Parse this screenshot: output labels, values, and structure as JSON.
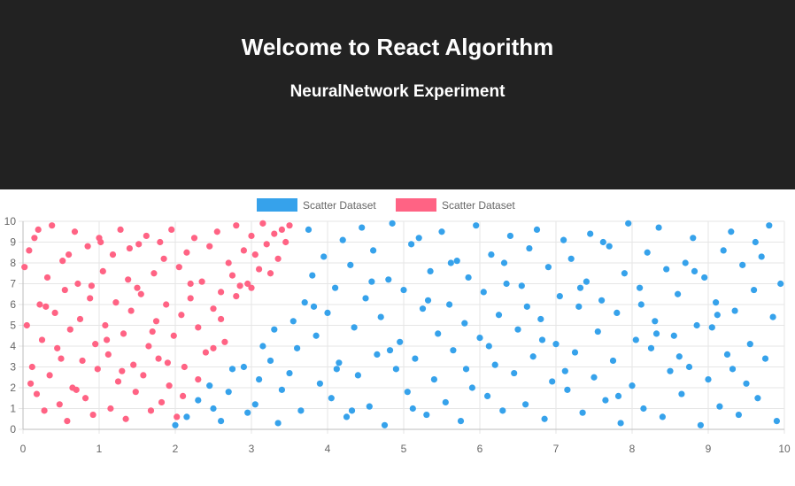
{
  "header": {
    "title": "Welcome to React Algorithm",
    "subtitle": "NeuralNetwork Experiment"
  },
  "colors": {
    "header_bg": "#222222",
    "series_blue": "#36a2eb",
    "series_red": "#ff6384",
    "grid": "#e6e6e6",
    "tick_text": "#666666"
  },
  "chart_data": {
    "type": "scatter",
    "xlim": [
      0,
      10
    ],
    "ylim": [
      0,
      10
    ],
    "x_ticks": [
      "0",
      "1",
      "2",
      "3",
      "4",
      "5",
      "6",
      "7",
      "8",
      "9",
      "10"
    ],
    "y_ticks": [
      "0",
      "1",
      "2",
      "3",
      "4",
      "5",
      "6",
      "7",
      "8",
      "9",
      "10"
    ],
    "grid": true,
    "legend_position": "top",
    "series": [
      {
        "name": "Scatter Dataset",
        "color": "#36a2eb",
        "points": [
          [
            2.0,
            0.2
          ],
          [
            2.15,
            0.6
          ],
          [
            2.3,
            1.4
          ],
          [
            2.45,
            2.1
          ],
          [
            2.5,
            1.0
          ],
          [
            2.6,
            0.4
          ],
          [
            2.7,
            1.8
          ],
          [
            2.75,
            2.9
          ],
          [
            2.9,
            3.0
          ],
          [
            2.95,
            0.8
          ],
          [
            3.05,
            1.2
          ],
          [
            3.1,
            2.4
          ],
          [
            3.15,
            4.0
          ],
          [
            3.25,
            3.3
          ],
          [
            3.3,
            4.8
          ],
          [
            3.35,
            0.3
          ],
          [
            3.4,
            1.9
          ],
          [
            3.5,
            2.7
          ],
          [
            3.55,
            5.2
          ],
          [
            3.6,
            3.9
          ],
          [
            3.65,
            0.9
          ],
          [
            3.7,
            6.1
          ],
          [
            3.75,
            9.6
          ],
          [
            3.8,
            7.4
          ],
          [
            3.85,
            4.5
          ],
          [
            3.9,
            2.2
          ],
          [
            3.95,
            8.3
          ],
          [
            4.0,
            5.6
          ],
          [
            4.05,
            1.5
          ],
          [
            4.1,
            6.8
          ],
          [
            4.15,
            3.2
          ],
          [
            4.2,
            9.1
          ],
          [
            4.25,
            0.6
          ],
          [
            4.3,
            7.9
          ],
          [
            4.35,
            4.9
          ],
          [
            4.4,
            2.6
          ],
          [
            4.45,
            9.7
          ],
          [
            4.5,
            6.3
          ],
          [
            4.55,
            1.1
          ],
          [
            4.6,
            8.6
          ],
          [
            4.65,
            3.6
          ],
          [
            4.7,
            5.4
          ],
          [
            4.75,
            0.2
          ],
          [
            4.8,
            7.2
          ],
          [
            4.85,
            9.9
          ],
          [
            4.9,
            2.9
          ],
          [
            4.95,
            4.2
          ],
          [
            5.0,
            6.7
          ],
          [
            5.05,
            1.8
          ],
          [
            5.1,
            8.9
          ],
          [
            5.15,
            3.4
          ],
          [
            5.2,
            9.2
          ],
          [
            5.25,
            5.8
          ],
          [
            5.3,
            0.7
          ],
          [
            5.35,
            7.6
          ],
          [
            5.4,
            2.4
          ],
          [
            5.45,
            4.6
          ],
          [
            5.5,
            9.5
          ],
          [
            5.55,
            1.3
          ],
          [
            5.6,
            6.0
          ],
          [
            5.65,
            3.8
          ],
          [
            5.7,
            8.1
          ],
          [
            5.75,
            0.4
          ],
          [
            5.8,
            5.1
          ],
          [
            5.85,
            7.3
          ],
          [
            5.9,
            2.0
          ],
          [
            5.95,
            9.8
          ],
          [
            6.0,
            4.4
          ],
          [
            6.05,
            6.6
          ],
          [
            6.1,
            1.6
          ],
          [
            6.15,
            8.4
          ],
          [
            6.2,
            3.1
          ],
          [
            6.25,
            5.5
          ],
          [
            6.3,
            0.9
          ],
          [
            6.35,
            7.0
          ],
          [
            6.4,
            9.3
          ],
          [
            6.45,
            2.7
          ],
          [
            6.5,
            4.8
          ],
          [
            6.55,
            6.9
          ],
          [
            6.6,
            1.2
          ],
          [
            6.65,
            8.7
          ],
          [
            6.7,
            3.5
          ],
          [
            6.75,
            9.6
          ],
          [
            6.8,
            5.3
          ],
          [
            6.85,
            0.5
          ],
          [
            6.9,
            7.8
          ],
          [
            6.95,
            2.3
          ],
          [
            7.0,
            4.1
          ],
          [
            7.05,
            6.4
          ],
          [
            7.1,
            9.1
          ],
          [
            7.15,
            1.9
          ],
          [
            7.2,
            8.2
          ],
          [
            7.25,
            3.7
          ],
          [
            7.3,
            5.9
          ],
          [
            7.35,
            0.8
          ],
          [
            7.4,
            7.1
          ],
          [
            7.45,
            9.4
          ],
          [
            7.5,
            2.5
          ],
          [
            7.55,
            4.7
          ],
          [
            7.6,
            6.2
          ],
          [
            7.65,
            1.4
          ],
          [
            7.7,
            8.8
          ],
          [
            7.75,
            3.3
          ],
          [
            7.8,
            5.6
          ],
          [
            7.85,
            0.3
          ],
          [
            7.9,
            7.5
          ],
          [
            7.95,
            9.9
          ],
          [
            8.0,
            2.1
          ],
          [
            8.05,
            4.3
          ],
          [
            8.1,
            6.8
          ],
          [
            8.15,
            1.0
          ],
          [
            8.2,
            8.5
          ],
          [
            8.25,
            3.9
          ],
          [
            8.3,
            5.2
          ],
          [
            8.35,
            9.7
          ],
          [
            8.4,
            0.6
          ],
          [
            8.45,
            7.7
          ],
          [
            8.5,
            2.8
          ],
          [
            8.55,
            4.5
          ],
          [
            8.6,
            6.5
          ],
          [
            8.65,
            1.7
          ],
          [
            8.7,
            8.0
          ],
          [
            8.75,
            3.0
          ],
          [
            8.8,
            9.2
          ],
          [
            8.85,
            5.0
          ],
          [
            8.9,
            0.2
          ],
          [
            8.95,
            7.3
          ],
          [
            9.0,
            2.4
          ],
          [
            9.05,
            4.9
          ],
          [
            9.1,
            6.1
          ],
          [
            9.15,
            1.1
          ],
          [
            9.2,
            8.6
          ],
          [
            9.25,
            3.6
          ],
          [
            9.3,
            9.5
          ],
          [
            9.35,
            5.7
          ],
          [
            9.4,
            0.7
          ],
          [
            9.45,
            7.9
          ],
          [
            9.5,
            2.2
          ],
          [
            9.55,
            4.1
          ],
          [
            9.6,
            6.7
          ],
          [
            9.65,
            1.5
          ],
          [
            9.7,
            8.3
          ],
          [
            9.75,
            3.4
          ],
          [
            9.8,
            9.8
          ],
          [
            9.85,
            5.4
          ],
          [
            9.9,
            0.4
          ],
          [
            9.95,
            7.0
          ],
          [
            4.12,
            2.9
          ],
          [
            4.58,
            7.1
          ],
          [
            5.12,
            1.0
          ],
          [
            5.62,
            8.0
          ],
          [
            6.12,
            4.0
          ],
          [
            6.62,
            5.9
          ],
          [
            7.12,
            2.8
          ],
          [
            7.62,
            9.0
          ],
          [
            8.12,
            6.0
          ],
          [
            8.62,
            3.5
          ],
          [
            9.12,
            5.5
          ],
          [
            9.62,
            9.0
          ],
          [
            3.82,
            5.9
          ],
          [
            4.32,
            0.9
          ],
          [
            4.82,
            3.8
          ],
          [
            5.32,
            6.2
          ],
          [
            5.82,
            2.9
          ],
          [
            6.32,
            8.0
          ],
          [
            6.82,
            4.3
          ],
          [
            7.32,
            6.8
          ],
          [
            7.82,
            1.6
          ],
          [
            8.32,
            4.6
          ],
          [
            8.82,
            7.6
          ],
          [
            9.32,
            2.9
          ]
        ]
      },
      {
        "name": "Scatter Dataset",
        "color": "#ff6384",
        "points": [
          [
            0.02,
            7.8
          ],
          [
            0.05,
            5.0
          ],
          [
            0.08,
            8.6
          ],
          [
            0.12,
            3.0
          ],
          [
            0.15,
            9.2
          ],
          [
            0.18,
            1.7
          ],
          [
            0.22,
            6.0
          ],
          [
            0.25,
            4.3
          ],
          [
            0.28,
            0.9
          ],
          [
            0.32,
            7.3
          ],
          [
            0.35,
            2.6
          ],
          [
            0.38,
            9.8
          ],
          [
            0.42,
            5.6
          ],
          [
            0.45,
            3.9
          ],
          [
            0.48,
            1.2
          ],
          [
            0.52,
            8.1
          ],
          [
            0.55,
            6.7
          ],
          [
            0.58,
            0.4
          ],
          [
            0.62,
            4.8
          ],
          [
            0.65,
            2.0
          ],
          [
            0.68,
            9.5
          ],
          [
            0.72,
            7.0
          ],
          [
            0.75,
            5.3
          ],
          [
            0.78,
            3.3
          ],
          [
            0.82,
            1.5
          ],
          [
            0.85,
            8.8
          ],
          [
            0.88,
            6.3
          ],
          [
            0.92,
            0.7
          ],
          [
            0.95,
            4.1
          ],
          [
            0.98,
            2.9
          ],
          [
            1.02,
            9.0
          ],
          [
            1.05,
            7.6
          ],
          [
            1.08,
            5.0
          ],
          [
            1.12,
            3.6
          ],
          [
            1.15,
            1.0
          ],
          [
            1.18,
            8.4
          ],
          [
            1.22,
            6.1
          ],
          [
            1.25,
            2.3
          ],
          [
            1.28,
            9.6
          ],
          [
            1.32,
            4.6
          ],
          [
            1.35,
            0.5
          ],
          [
            1.38,
            7.2
          ],
          [
            1.42,
            5.7
          ],
          [
            1.45,
            3.1
          ],
          [
            1.48,
            1.8
          ],
          [
            1.52,
            8.9
          ],
          [
            1.55,
            6.5
          ],
          [
            1.58,
            2.6
          ],
          [
            1.62,
            9.3
          ],
          [
            1.65,
            4.0
          ],
          [
            1.68,
            0.9
          ],
          [
            1.72,
            7.5
          ],
          [
            1.75,
            5.2
          ],
          [
            1.78,
            3.4
          ],
          [
            1.82,
            1.3
          ],
          [
            1.85,
            8.2
          ],
          [
            1.88,
            6.0
          ],
          [
            1.92,
            2.1
          ],
          [
            1.95,
            9.6
          ],
          [
            1.98,
            4.5
          ],
          [
            2.02,
            0.6
          ],
          [
            2.05,
            7.8
          ],
          [
            2.08,
            5.5
          ],
          [
            2.12,
            3.0
          ],
          [
            2.15,
            8.5
          ],
          [
            2.2,
            6.3
          ],
          [
            2.25,
            9.2
          ],
          [
            2.3,
            4.9
          ],
          [
            2.35,
            7.1
          ],
          [
            2.4,
            3.7
          ],
          [
            2.45,
            8.8
          ],
          [
            2.5,
            5.8
          ],
          [
            2.55,
            9.5
          ],
          [
            2.6,
            6.6
          ],
          [
            2.65,
            4.2
          ],
          [
            2.7,
            8.0
          ],
          [
            2.75,
            7.4
          ],
          [
            2.8,
            9.8
          ],
          [
            2.85,
            6.9
          ],
          [
            2.9,
            8.6
          ],
          [
            2.95,
            7.0
          ],
          [
            3.0,
            9.3
          ],
          [
            3.05,
            8.4
          ],
          [
            3.1,
            7.7
          ],
          [
            3.15,
            9.9
          ],
          [
            3.2,
            8.9
          ],
          [
            3.25,
            7.5
          ],
          [
            3.3,
            9.4
          ],
          [
            3.35,
            8.2
          ],
          [
            3.4,
            9.6
          ],
          [
            3.45,
            9.0
          ],
          [
            3.5,
            9.8
          ],
          [
            0.1,
            2.2
          ],
          [
            0.3,
            5.9
          ],
          [
            0.5,
            3.4
          ],
          [
            0.7,
            1.9
          ],
          [
            0.9,
            6.9
          ],
          [
            1.1,
            4.3
          ],
          [
            1.3,
            2.8
          ],
          [
            1.5,
            6.8
          ],
          [
            1.7,
            4.7
          ],
          [
            1.9,
            3.2
          ],
          [
            2.1,
            1.6
          ],
          [
            2.3,
            2.4
          ],
          [
            2.5,
            3.9
          ],
          [
            0.2,
            9.6
          ],
          [
            0.6,
            8.4
          ],
          [
            1.0,
            9.2
          ],
          [
            1.4,
            8.7
          ],
          [
            1.8,
            9.0
          ],
          [
            2.2,
            7.0
          ],
          [
            2.6,
            5.3
          ],
          [
            2.8,
            6.4
          ],
          [
            3.0,
            6.8
          ]
        ]
      }
    ]
  }
}
